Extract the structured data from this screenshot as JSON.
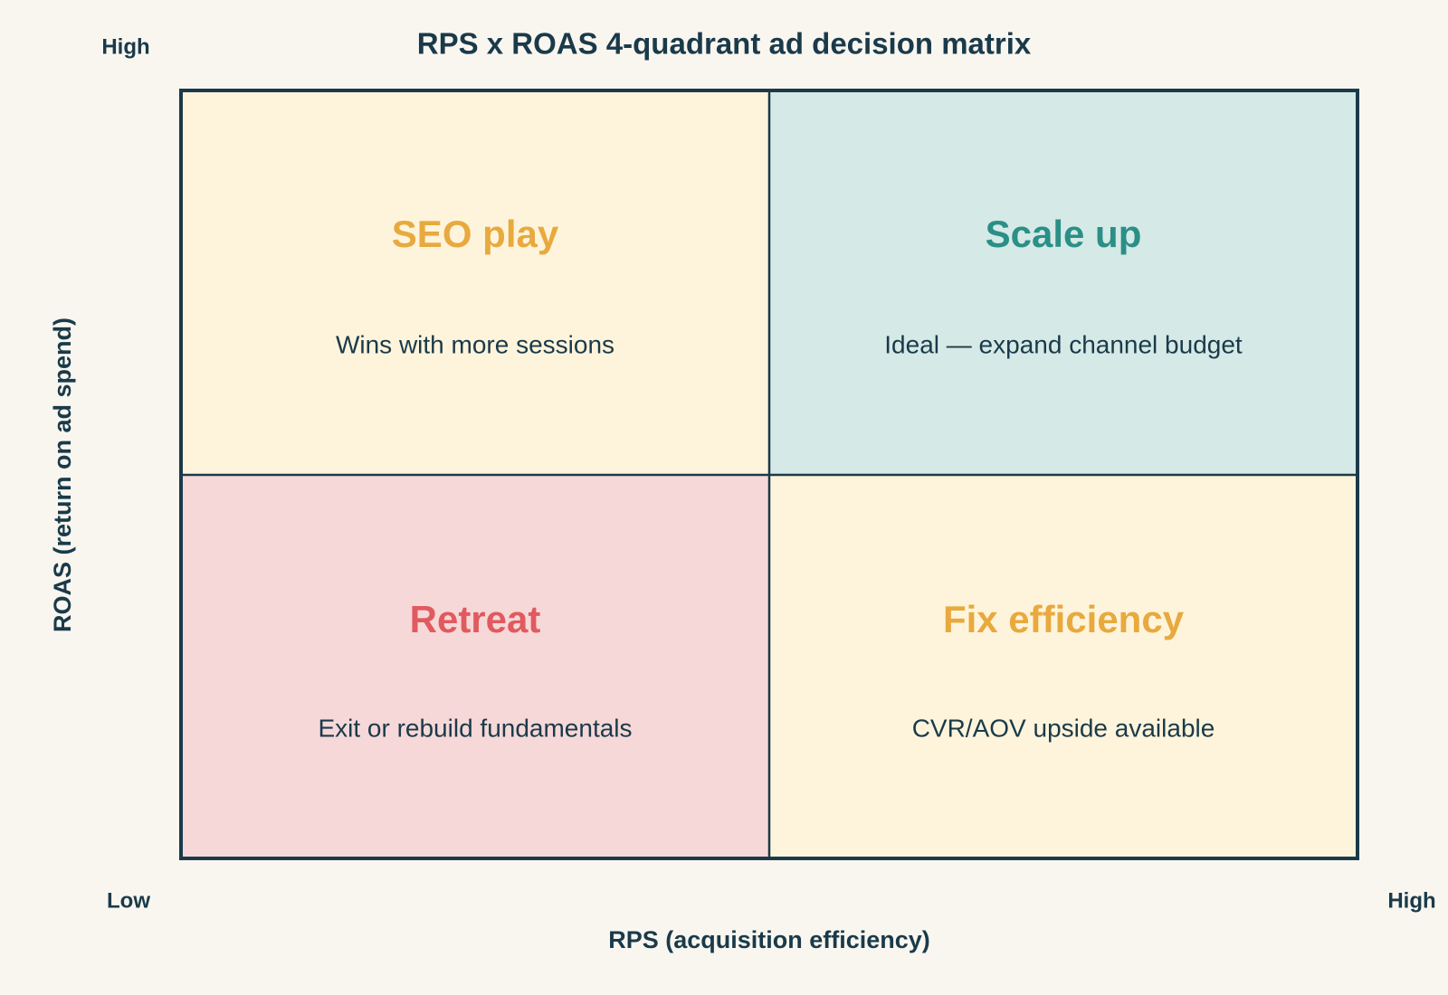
{
  "title": "RPS x ROAS 4-quadrant ad decision matrix",
  "y_axis": {
    "label": "ROAS (return on ad spend)",
    "high": "High"
  },
  "x_axis": {
    "label": "RPS (acquisition efficiency)",
    "low": "Low",
    "high": "High"
  },
  "quadrants": [
    {
      "title": "SEO play",
      "description": "Wins with more sessions"
    },
    {
      "title": "Scale up",
      "description": "Ideal — expand channel budget"
    },
    {
      "title": "Retreat",
      "description": "Exit or rebuild fundamentals"
    },
    {
      "title": "Fix efficiency",
      "description": "CVR/AOV upside available"
    }
  ]
}
